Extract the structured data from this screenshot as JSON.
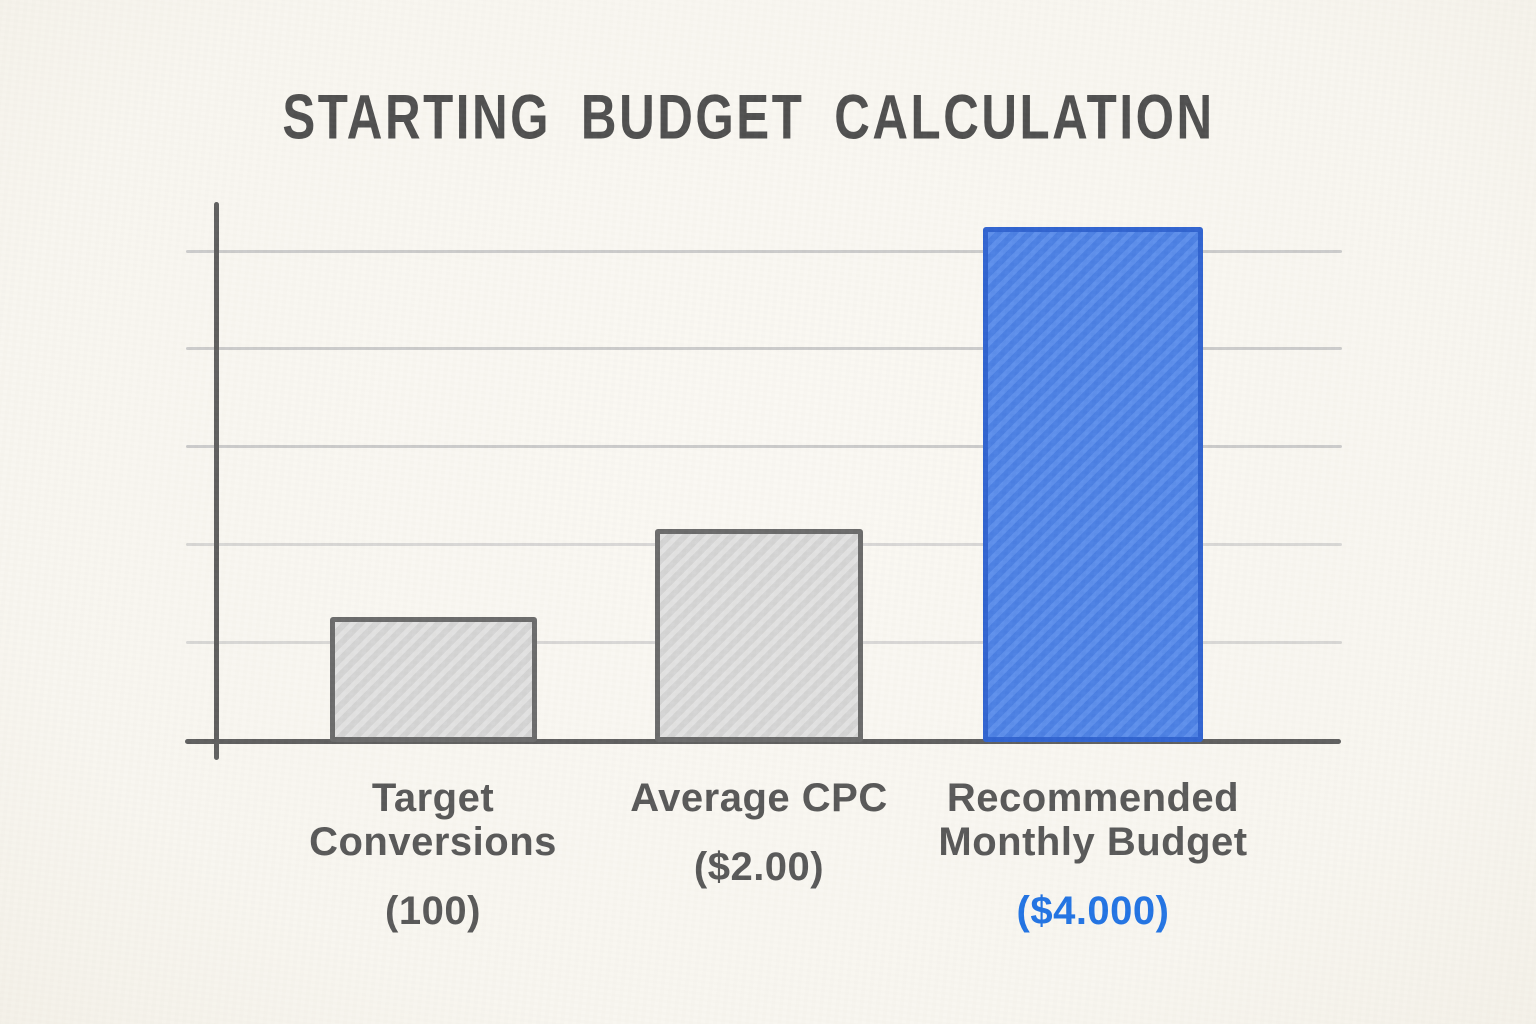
{
  "chart_data": {
    "type": "bar",
    "title": "STARTING BUDGET CALCULATION",
    "xlabel": "",
    "ylabel": "",
    "legend_position": "none",
    "grid": "horizontal",
    "gridline_count": 5,
    "categories": [
      "Target Conversions",
      "Average CPC",
      "Recommended Monthly Budget"
    ],
    "values": [
      100,
      2.0,
      4000
    ],
    "value_labels": [
      "(100)",
      "($2.00)",
      "($4.000)"
    ],
    "bars": [
      {
        "category_lines": [
          "Target",
          "Conversions"
        ],
        "value": 100,
        "value_label": "(100)",
        "relative_height": 0.233,
        "style": "gray"
      },
      {
        "category_lines": [
          "Average CPC"
        ],
        "value": 2.0,
        "value_label": "($2.00)",
        "relative_height": 0.397,
        "style": "gray"
      },
      {
        "category_lines": [
          "Recommended",
          "Monthly Budget"
        ],
        "value": 4000,
        "value_label": "($4.000)",
        "relative_height": 0.959,
        "style": "blue"
      }
    ],
    "colors": {
      "background": "#f8f6f0",
      "title_text": "#4e4e4e",
      "label_text": "#575757",
      "value_text_blue": "#2173e4",
      "axis": "#5e5e5e",
      "gridline": "#cbcbcb",
      "gray_bar_fill_light": "#e2e2e2",
      "gray_bar_fill_dark": "#d4d4d4",
      "gray_bar_border": "#6a6a6a",
      "blue_bar_fill_light": "#5c8eec",
      "blue_bar_fill_dark": "#4a7fe4",
      "blue_bar_border": "#2f63d0"
    }
  }
}
